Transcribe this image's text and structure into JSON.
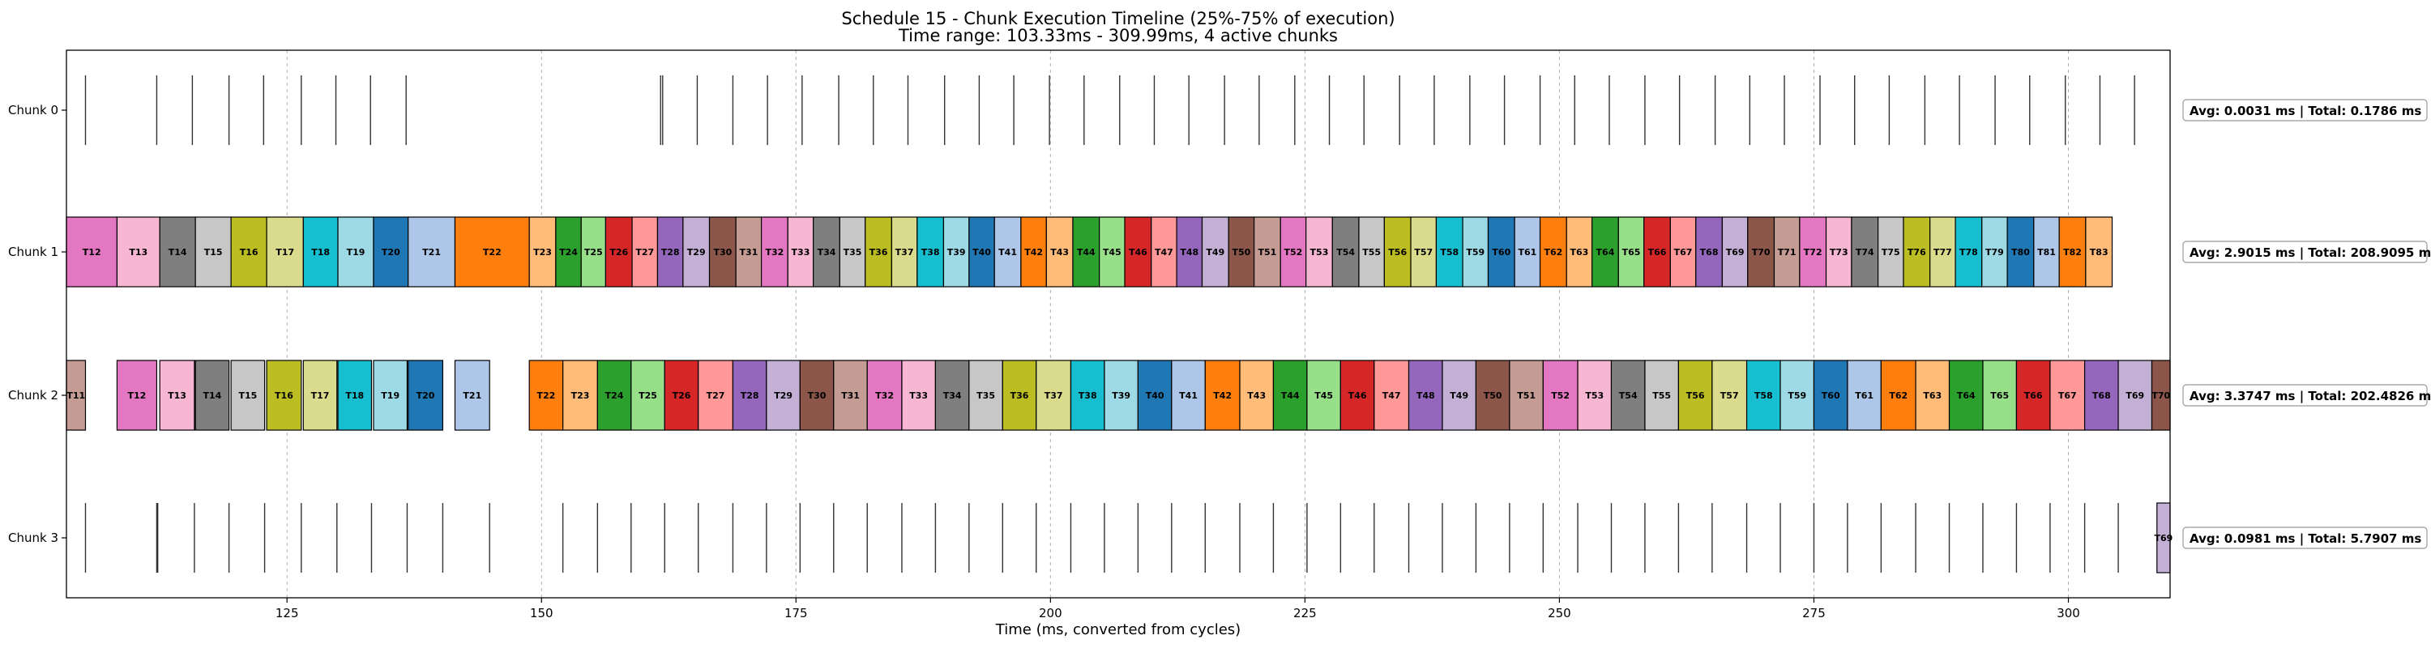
{
  "chart_data": {
    "type": "timeline",
    "title": "Schedule 15 - Chunk Execution Timeline (25%-75% of execution)",
    "subtitle": "Time range: 103.33ms - 309.99ms, 4 active chunks",
    "xlabel": "Time (ms, converted from cycles)",
    "xlim": [
      103.33,
      309.99
    ],
    "x_ticks": [
      125,
      150,
      175,
      200,
      225,
      250,
      275,
      300
    ],
    "grid": "vertical dashed",
    "palette": [
      "#1f77b4",
      "#aec7e8",
      "#ff7f0e",
      "#ffbb78",
      "#2ca02c",
      "#98df8a",
      "#d62728",
      "#ff9896",
      "#9467bd",
      "#c5b0d5",
      "#8c564b",
      "#c49c94",
      "#e377c2",
      "#f7b6d2",
      "#7f7f7f",
      "#c7c7c7",
      "#bcbd22",
      "#dbdb8d",
      "#17becf",
      "#9edae5"
    ],
    "lanes": [
      {
        "name": "Chunk 0",
        "stats": "Avg: 0.0031 ms | Total: 0.1786 ms",
        "spikes": [
          105.2,
          112.2,
          115.7,
          119.3,
          122.7,
          126.4,
          129.8,
          133.2,
          136.7,
          161.7,
          161.9,
          165.3,
          168.8,
          172.2,
          175.6,
          179.2,
          182.6,
          186.0,
          189.6,
          193.0,
          196.4,
          199.9,
          203.3,
          206.8,
          210.2,
          213.6,
          217.1,
          220.5,
          224.0,
          227.4,
          230.8,
          234.3,
          237.7,
          241.2,
          244.6,
          248.1,
          251.5,
          254.9,
          258.4,
          261.8,
          265.3,
          268.7,
          272.1,
          275.6,
          279.0,
          282.4,
          285.9,
          289.3,
          292.8,
          296.2,
          299.7,
          303.1,
          306.5
        ],
        "tasks": []
      },
      {
        "name": "Chunk 1",
        "stats": "Avg: 2.9015 ms | Total: 208.9095 ms",
        "spikes": [],
        "tasks": [
          {
            "label": "T12",
            "start": 103.33,
            "end": 108.3
          },
          {
            "label": "T13",
            "start": 108.3,
            "end": 112.5
          },
          {
            "label": "T14",
            "start": 112.5,
            "end": 116.0
          },
          {
            "label": "T15",
            "start": 116.0,
            "end": 119.5
          },
          {
            "label": "T16",
            "start": 119.5,
            "end": 123.0
          },
          {
            "label": "T17",
            "start": 123.0,
            "end": 126.6
          },
          {
            "label": "T18",
            "start": 126.6,
            "end": 130.0
          },
          {
            "label": "T19",
            "start": 130.0,
            "end": 133.5
          },
          {
            "label": "T20",
            "start": 133.5,
            "end": 136.9
          },
          {
            "label": "T21",
            "start": 136.9,
            "end": 141.5
          },
          {
            "label": "T22",
            "start": 141.5,
            "end": 148.8
          },
          {
            "label": "T23",
            "start": 148.8,
            "end": 151.4
          },
          {
            "label": "T24",
            "start": 151.4,
            "end": 153.9
          },
          {
            "label": "T25",
            "start": 153.9,
            "end": 156.3
          },
          {
            "label": "T26",
            "start": 156.3,
            "end": 158.9
          },
          {
            "label": "T27",
            "start": 158.9,
            "end": 161.4
          },
          {
            "label": "T28",
            "start": 161.4,
            "end": 163.9
          },
          {
            "label": "T29",
            "start": 163.9,
            "end": 166.5
          },
          {
            "label": "T30",
            "start": 166.5,
            "end": 169.1
          },
          {
            "label": "T31",
            "start": 169.1,
            "end": 171.6
          },
          {
            "label": "T32",
            "start": 171.6,
            "end": 174.2
          },
          {
            "label": "T33",
            "start": 174.2,
            "end": 176.7
          },
          {
            "label": "T34",
            "start": 176.7,
            "end": 179.3
          },
          {
            "label": "T35",
            "start": 179.3,
            "end": 181.8
          },
          {
            "label": "T36",
            "start": 181.8,
            "end": 184.4
          },
          {
            "label": "T37",
            "start": 184.4,
            "end": 186.9
          },
          {
            "label": "T38",
            "start": 186.9,
            "end": 189.5
          },
          {
            "label": "T39",
            "start": 189.5,
            "end": 192.0
          },
          {
            "label": "T40",
            "start": 192.0,
            "end": 194.5
          },
          {
            "label": "T41",
            "start": 194.5,
            "end": 197.1
          },
          {
            "label": "T42",
            "start": 197.1,
            "end": 199.6
          },
          {
            "label": "T43",
            "start": 199.6,
            "end": 202.2
          },
          {
            "label": "T44",
            "start": 202.2,
            "end": 204.8
          },
          {
            "label": "T45",
            "start": 204.8,
            "end": 207.3
          },
          {
            "label": "T46",
            "start": 207.3,
            "end": 209.9
          },
          {
            "label": "T47",
            "start": 209.9,
            "end": 212.4
          },
          {
            "label": "T48",
            "start": 212.4,
            "end": 214.9
          },
          {
            "label": "T49",
            "start": 214.9,
            "end": 217.5
          },
          {
            "label": "T50",
            "start": 217.5,
            "end": 220.0
          },
          {
            "label": "T51",
            "start": 220.0,
            "end": 222.6
          },
          {
            "label": "T52",
            "start": 222.6,
            "end": 225.1
          },
          {
            "label": "T53",
            "start": 225.1,
            "end": 227.7
          },
          {
            "label": "T54",
            "start": 227.7,
            "end": 230.3
          },
          {
            "label": "T55",
            "start": 230.3,
            "end": 232.8
          },
          {
            "label": "T56",
            "start": 232.8,
            "end": 235.4
          },
          {
            "label": "T57",
            "start": 235.4,
            "end": 237.9
          },
          {
            "label": "T58",
            "start": 237.9,
            "end": 240.5
          },
          {
            "label": "T59",
            "start": 240.5,
            "end": 243.0
          },
          {
            "label": "T60",
            "start": 243.0,
            "end": 245.6
          },
          {
            "label": "T61",
            "start": 245.6,
            "end": 248.1
          },
          {
            "label": "T62",
            "start": 248.1,
            "end": 250.7
          },
          {
            "label": "T63",
            "start": 250.7,
            "end": 253.2
          },
          {
            "label": "T64",
            "start": 253.2,
            "end": 255.8
          },
          {
            "label": "T65",
            "start": 255.8,
            "end": 258.3
          },
          {
            "label": "T66",
            "start": 258.3,
            "end": 260.9
          },
          {
            "label": "T67",
            "start": 260.9,
            "end": 263.4
          },
          {
            "label": "T68",
            "start": 263.4,
            "end": 266.0
          },
          {
            "label": "T69",
            "start": 266.0,
            "end": 268.5
          },
          {
            "label": "T70",
            "start": 268.5,
            "end": 271.1
          },
          {
            "label": "T71",
            "start": 271.1,
            "end": 273.6
          },
          {
            "label": "T72",
            "start": 273.6,
            "end": 276.2
          },
          {
            "label": "T73",
            "start": 276.2,
            "end": 278.7
          },
          {
            "label": "T74",
            "start": 278.7,
            "end": 281.3
          },
          {
            "label": "T75",
            "start": 281.3,
            "end": 283.8
          },
          {
            "label": "T76",
            "start": 283.8,
            "end": 286.4
          },
          {
            "label": "T77",
            "start": 286.4,
            "end": 288.9
          },
          {
            "label": "T78",
            "start": 288.9,
            "end": 291.5
          },
          {
            "label": "T79",
            "start": 291.5,
            "end": 294.0
          },
          {
            "label": "T80",
            "start": 294.0,
            "end": 296.6
          },
          {
            "label": "T81",
            "start": 296.6,
            "end": 299.1
          },
          {
            "label": "T82",
            "start": 299.1,
            "end": 301.7
          },
          {
            "label": "T83",
            "start": 301.7,
            "end": 304.3
          }
        ]
      },
      {
        "name": "Chunk 2",
        "stats": "Avg: 3.3747 ms | Total: 202.4826 ms",
        "spikes": [],
        "tasks": [
          {
            "label": "T11",
            "start": 103.33,
            "end": 105.2
          },
          {
            "label": "T12",
            "start": 108.3,
            "end": 112.2
          },
          {
            "label": "T13",
            "start": 112.5,
            "end": 115.9
          },
          {
            "label": "T14",
            "start": 116.0,
            "end": 119.3
          },
          {
            "label": "T15",
            "start": 119.5,
            "end": 122.8
          },
          {
            "label": "T16",
            "start": 123.0,
            "end": 126.4
          },
          {
            "label": "T17",
            "start": 126.6,
            "end": 129.9
          },
          {
            "label": "T18",
            "start": 130.0,
            "end": 133.3
          },
          {
            "label": "T19",
            "start": 133.5,
            "end": 136.8
          },
          {
            "label": "T20",
            "start": 136.9,
            "end": 140.3
          },
          {
            "label": "T21",
            "start": 141.5,
            "end": 144.9
          },
          {
            "label": "T22",
            "start": 148.8,
            "end": 152.1
          },
          {
            "label": "T23",
            "start": 152.1,
            "end": 155.5
          },
          {
            "label": "T24",
            "start": 155.5,
            "end": 158.8
          },
          {
            "label": "T25",
            "start": 158.8,
            "end": 162.1
          },
          {
            "label": "T26",
            "start": 162.1,
            "end": 165.4
          },
          {
            "label": "T27",
            "start": 165.4,
            "end": 168.8
          },
          {
            "label": "T28",
            "start": 168.8,
            "end": 172.1
          },
          {
            "label": "T29",
            "start": 172.1,
            "end": 175.4
          },
          {
            "label": "T30",
            "start": 175.4,
            "end": 178.7
          },
          {
            "label": "T31",
            "start": 178.7,
            "end": 182.0
          },
          {
            "label": "T32",
            "start": 182.0,
            "end": 185.4
          },
          {
            "label": "T33",
            "start": 185.4,
            "end": 188.7
          },
          {
            "label": "T34",
            "start": 188.7,
            "end": 192.0
          },
          {
            "label": "T35",
            "start": 192.0,
            "end": 195.3
          },
          {
            "label": "T36",
            "start": 195.3,
            "end": 198.6
          },
          {
            "label": "T37",
            "start": 198.6,
            "end": 202.0
          },
          {
            "label": "T38",
            "start": 202.0,
            "end": 205.3
          },
          {
            "label": "T39",
            "start": 205.3,
            "end": 208.6
          },
          {
            "label": "T40",
            "start": 208.6,
            "end": 211.9
          },
          {
            "label": "T41",
            "start": 211.9,
            "end": 215.2
          },
          {
            "label": "T42",
            "start": 215.2,
            "end": 218.6
          },
          {
            "label": "T43",
            "start": 218.6,
            "end": 221.9
          },
          {
            "label": "T44",
            "start": 221.9,
            "end": 225.2
          },
          {
            "label": "T45",
            "start": 225.2,
            "end": 228.5
          },
          {
            "label": "T46",
            "start": 228.5,
            "end": 231.8
          },
          {
            "label": "T47",
            "start": 231.8,
            "end": 235.2
          },
          {
            "label": "T48",
            "start": 235.2,
            "end": 238.5
          },
          {
            "label": "T49",
            "start": 238.5,
            "end": 241.8
          },
          {
            "label": "T50",
            "start": 241.8,
            "end": 245.1
          },
          {
            "label": "T51",
            "start": 245.1,
            "end": 248.4
          },
          {
            "label": "T52",
            "start": 248.4,
            "end": 251.8
          },
          {
            "label": "T53",
            "start": 251.8,
            "end": 255.1
          },
          {
            "label": "T54",
            "start": 255.1,
            "end": 258.4
          },
          {
            "label": "T55",
            "start": 258.4,
            "end": 261.7
          },
          {
            "label": "T56",
            "start": 261.7,
            "end": 265.0
          },
          {
            "label": "T57",
            "start": 265.0,
            "end": 268.4
          },
          {
            "label": "T58",
            "start": 268.4,
            "end": 271.7
          },
          {
            "label": "T59",
            "start": 271.7,
            "end": 275.0
          },
          {
            "label": "T60",
            "start": 275.0,
            "end": 278.3
          },
          {
            "label": "T61",
            "start": 278.3,
            "end": 281.6
          },
          {
            "label": "T62",
            "start": 281.6,
            "end": 285.0
          },
          {
            "label": "T63",
            "start": 285.0,
            "end": 288.3
          },
          {
            "label": "T64",
            "start": 288.3,
            "end": 291.6
          },
          {
            "label": "T65",
            "start": 291.6,
            "end": 294.9
          },
          {
            "label": "T66",
            "start": 294.9,
            "end": 298.2
          },
          {
            "label": "T67",
            "start": 298.2,
            "end": 301.6
          },
          {
            "label": "T68",
            "start": 301.6,
            "end": 304.9
          },
          {
            "label": "T69",
            "start": 304.9,
            "end": 308.2
          },
          {
            "label": "T70",
            "start": 308.2,
            "end": 309.99
          }
        ]
      },
      {
        "name": "Chunk 3",
        "stats": "Avg: 0.0981 ms | Total: 5.7907 ms",
        "spikes": [
          105.2,
          112.2,
          112.3,
          115.9,
          119.3,
          122.8,
          126.4,
          129.9,
          133.3,
          136.8,
          140.3,
          144.9,
          152.1,
          155.5,
          158.8,
          162.1,
          165.4,
          168.8,
          172.1,
          175.4,
          178.7,
          182.0,
          185.4,
          188.7,
          192.0,
          195.3,
          198.6,
          202.0,
          205.3,
          208.6,
          211.9,
          215.2,
          218.6,
          221.9,
          225.2,
          228.5,
          231.8,
          235.2,
          238.5,
          241.8,
          245.1,
          248.4,
          251.8,
          255.1,
          258.4,
          261.7,
          265.0,
          268.4,
          271.7,
          275.0,
          278.3,
          281.6,
          285.0,
          288.3,
          291.6,
          294.9,
          298.2,
          301.6,
          304.9
        ],
        "tasks": [
          {
            "label": "T69",
            "start": 308.7,
            "end": 309.99
          }
        ]
      }
    ]
  }
}
